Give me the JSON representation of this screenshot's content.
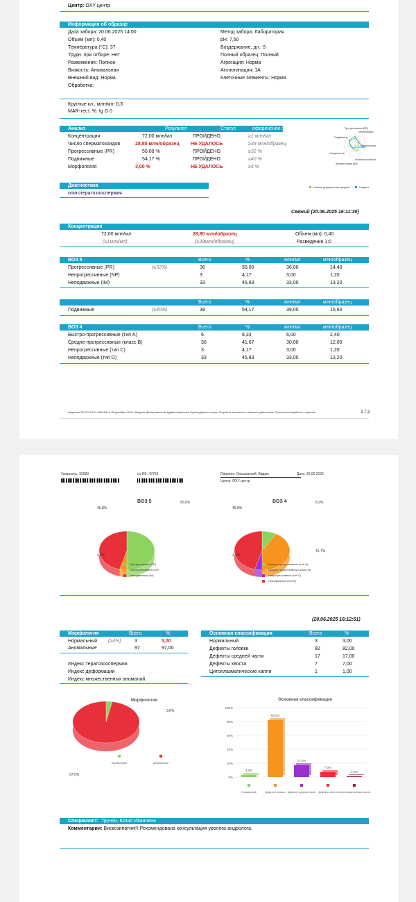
{
  "p1": {
    "center_label": "Центр:",
    "center_value": "OXY центр",
    "sample": {
      "header": "Информация об образце",
      "left": [
        "Дата забора: 20.06.2025 14:00",
        "Объем (мл): 0,40",
        "Температура (°C): 37",
        "Трудн. при отборе: Нет",
        "Разжижение: Полное",
        "Вязкость: Аномальная",
        "Внешний вид: Норма",
        "Обработка:"
      ],
      "right": [
        "Метод забора: Лаборатория",
        "pH: 7,50",
        "Воздержание, дн.: 5",
        "Полный образец: Полный",
        "Агрегация: Норма",
        "Агглютинация: 1А",
        "Клеточные элементы: Норма"
      ]
    },
    "round_cells": "Круглые кл., млн/мл: 0,3",
    "mar_test": "MAR-тест, %: Ig G 0",
    "analysis": {
      "headers": [
        "Анализ",
        "Результат",
        "Статус",
        "еференсное значени"
      ],
      "rows": [
        {
          "name": "Концентрация",
          "value": "72,00 млн/мл",
          "status": "ПРОЙДЕНО",
          "ref": "≥1 млн/мл",
          "bad": false
        },
        {
          "name": "Число сперматозоидов",
          "value": "28,80 млн/образец",
          "status": "НЕ УДАЛОСЬ",
          "ref": "≥39 млн/образец",
          "bad": true
        },
        {
          "name": "Прогрессивные (PR)",
          "value": "50,00 %",
          "status": "ПРОЙДЕНО",
          "ref": "≥32 %",
          "bad": false
        },
        {
          "name": "Подвижные",
          "value": "54,17 %",
          "status": "ПРОЙДЕНО",
          "ref": "≥40 %",
          "bad": false
        },
        {
          "name": "Морфология",
          "value": "3,00 %",
          "status": "НЕ УДАЛОСЬ",
          "ref": "≥4 %",
          "bad": true
        }
      ]
    },
    "radar": {
      "labels": [
        "Прогрессивные (PR)",
        "млн/образец",
        "Концентрация",
        "Жизнеспособность",
        "Фрагментация ДНК",
        "Морфология",
        "Подвижные"
      ],
      "legend": [
        "Нижние референсные пределы",
        "Пациент"
      ],
      "colors": {
        "ref": "#8dc63f",
        "patient": "#1da3c8"
      }
    },
    "diagnosis": {
      "header": "Диагностика",
      "value": "олиготератозооспермия"
    },
    "fresh": "Свежий  (20.06.2025  16:11:30)",
    "concentration": {
      "header": "Концентрация",
      "value1": "72,00 млн/мл",
      "ref1": "(≥1млн/мл)",
      "value2": "28,80 млн/образец",
      "ref2": "(≥39млн/образец)",
      "volume": "Объем (мл): 0,40",
      "dilution": "Разведение 1:0"
    },
    "who5": {
      "header": "ВОЗ 5",
      "cols": [
        "Всего",
        "%",
        "млн/мл",
        "млн/образец"
      ],
      "rows": [
        {
          "name": "Прогрессивные (PR)",
          "ref": "(≥32%)",
          "v": [
            "36",
            "50,00",
            "36,00",
            "14,40"
          ]
        },
        {
          "name": "Непрогрессивные (NP)",
          "ref": "",
          "v": [
            "3",
            "4,17",
            "3,00",
            "1,20"
          ]
        },
        {
          "name": "Неподвижные (IM)",
          "ref": "",
          "v": [
            "33",
            "45,83",
            "33,00",
            "13,20"
          ]
        }
      ]
    },
    "motile": {
      "cols": [
        "Всего",
        "%",
        "млн/мл",
        "млн/образец"
      ],
      "row": {
        "name": "Подвижные",
        "ref": "(≥40%)",
        "v": [
          "39",
          "54,17",
          "39,00",
          "15,60"
        ]
      }
    },
    "who4": {
      "header": "ВОЗ 4",
      "cols": [
        "Всего",
        "%",
        "млн/мл",
        "млн/образец"
      ],
      "rows": [
        {
          "name": "Быстро-прогрессивные (тип A)",
          "v": [
            "6",
            "8,33",
            "6,00",
            "2,40"
          ]
        },
        {
          "name": "Средне-прогрессивные (класс B)",
          "v": [
            "30",
            "41,67",
            "30,00",
            "12,00"
          ]
        },
        {
          "name": "Непрогрессивные (тип C)",
          "v": [
            "3",
            "4,17",
            "3,00",
            "1,20"
          ]
        },
        {
          "name": "Неподвижные (тип D)",
          "v": [
            "33",
            "45,83",
            "33,00",
            "13,20"
          ]
        }
      ]
    },
    "footer": "Лицензия № ЛО-23-01-006133 от 28 декабря 2013г. Выдана Департаментом здравоохранения Краснодарского края. Результат анализа не является диагнозом. Проконсультируйтесь с врачом.",
    "page_num": "1 / 2"
  },
  "p2": {
    "top": {
      "ukazatel": "Указатель: 32680",
      "ib": "№ ИБ: 43755",
      "patient": "Пациент: Ольшевский, Вадим",
      "date": "Дата: 20.06.2025",
      "center": "Центр: OXY центр"
    },
    "pie_who5": {
      "title": "ВОЗ 5",
      "slices": [
        {
          "label": "Прогрессивные (PR)",
          "value": 50.0,
          "color": "#8dd35f"
        },
        {
          "label": "Непрогрессивные (NP)",
          "value": 4.2,
          "color": "#f7941d"
        },
        {
          "label": "Неподвижные (IM)",
          "value": 45.8,
          "color": "#e8303a"
        }
      ],
      "value_labels": [
        "50,0%",
        "4,2%",
        "45,8%"
      ]
    },
    "pie_who4": {
      "title": "ВОЗ 4",
      "slices": [
        {
          "label": "Быстро-прогрессивные (тип A)",
          "value": 8.3,
          "color": "#8dd35f"
        },
        {
          "label": "Средне-прогрессивные (класс B)",
          "value": 41.7,
          "color": "#f7941d"
        },
        {
          "label": "Непрогрессивные (тип C)",
          "value": 4.2,
          "color": "#9b30d0"
        },
        {
          "label": "Неподвижные (тип D)",
          "value": 45.8,
          "color": "#e8303a"
        }
      ],
      "value_labels": [
        "8,3%",
        "41,7%",
        "4,2%",
        "45,8%"
      ]
    },
    "time2": "(20.06.2025  16:12:51)",
    "morph": {
      "headers": [
        "Морфология",
        "Всего",
        "%"
      ],
      "rows": [
        {
          "name": "Нормальный",
          "ref": "(≥4%)",
          "total": "3",
          "pct": "3,00",
          "bad": true
        },
        {
          "name": "Аномальные",
          "ref": "",
          "total": "97",
          "pct": "97,00",
          "bad": false
        }
      ],
      "indices": [
        "Индекс тератозооспермии",
        "Индекс деформации",
        "Индекс множественных аномалий"
      ]
    },
    "classif": {
      "headers": [
        "Основная классификация",
        "Всего",
        "%"
      ],
      "rows": [
        {
          "name": "Нормальный",
          "total": "3",
          "pct": "3,00"
        },
        {
          "name": "Дефекты головки",
          "total": "82",
          "pct": "82,00"
        },
        {
          "name": "Дефекты средней части",
          "total": "17",
          "pct": "17,00"
        },
        {
          "name": "Дефекты хвоста",
          "total": "7",
          "pct": "7,00"
        },
        {
          "name": "Цитоплазматические капли",
          "total": "1",
          "pct": "1,00"
        }
      ]
    },
    "chart_data": [
      {
        "type": "pie",
        "title": "Морфология",
        "categories": [
          "Нормальный",
          "Аномальные"
        ],
        "values": [
          3.0,
          97.0
        ],
        "value_labels": [
          "3,0%",
          "97,0%"
        ],
        "colors": [
          "#8dd35f",
          "#e8303a"
        ]
      },
      {
        "type": "bar",
        "title": "Основная классификация",
        "categories": [
          "Нормальный",
          "Дефекты головки",
          "Дефекты средней части",
          "Дефекты хвоста",
          "Цитоплазматические капли"
        ],
        "legend_labels": [
          "Нормальный",
          "Дефекты головки",
          "Дефекты средней части",
          "Дефекты хвоста",
          "Цитоплазматиче­ские капли"
        ],
        "values": [
          3.0,
          82.0,
          17.0,
          7.0,
          1.0
        ],
        "value_labels": [
          "3,0%",
          "82,0%",
          "17,0%",
          "7,0%",
          "1,0%"
        ],
        "colors": [
          "#8dd35f",
          "#f7941d",
          "#9b30d0",
          "#e8303a",
          "#a0203a"
        ],
        "ylim": [
          0,
          100
        ],
        "yticks": [
          "0%",
          "20%",
          "40%",
          "60%",
          "80%",
          "100%"
        ],
        "grid": true
      }
    ],
    "specialist_label": "Специалист:",
    "specialist": "Трунян, Юлия Ивановна",
    "comment_label": "Комментарии:",
    "comment": "Вискозипатия!!! Рекомендована консультация уролога-андролога."
  }
}
